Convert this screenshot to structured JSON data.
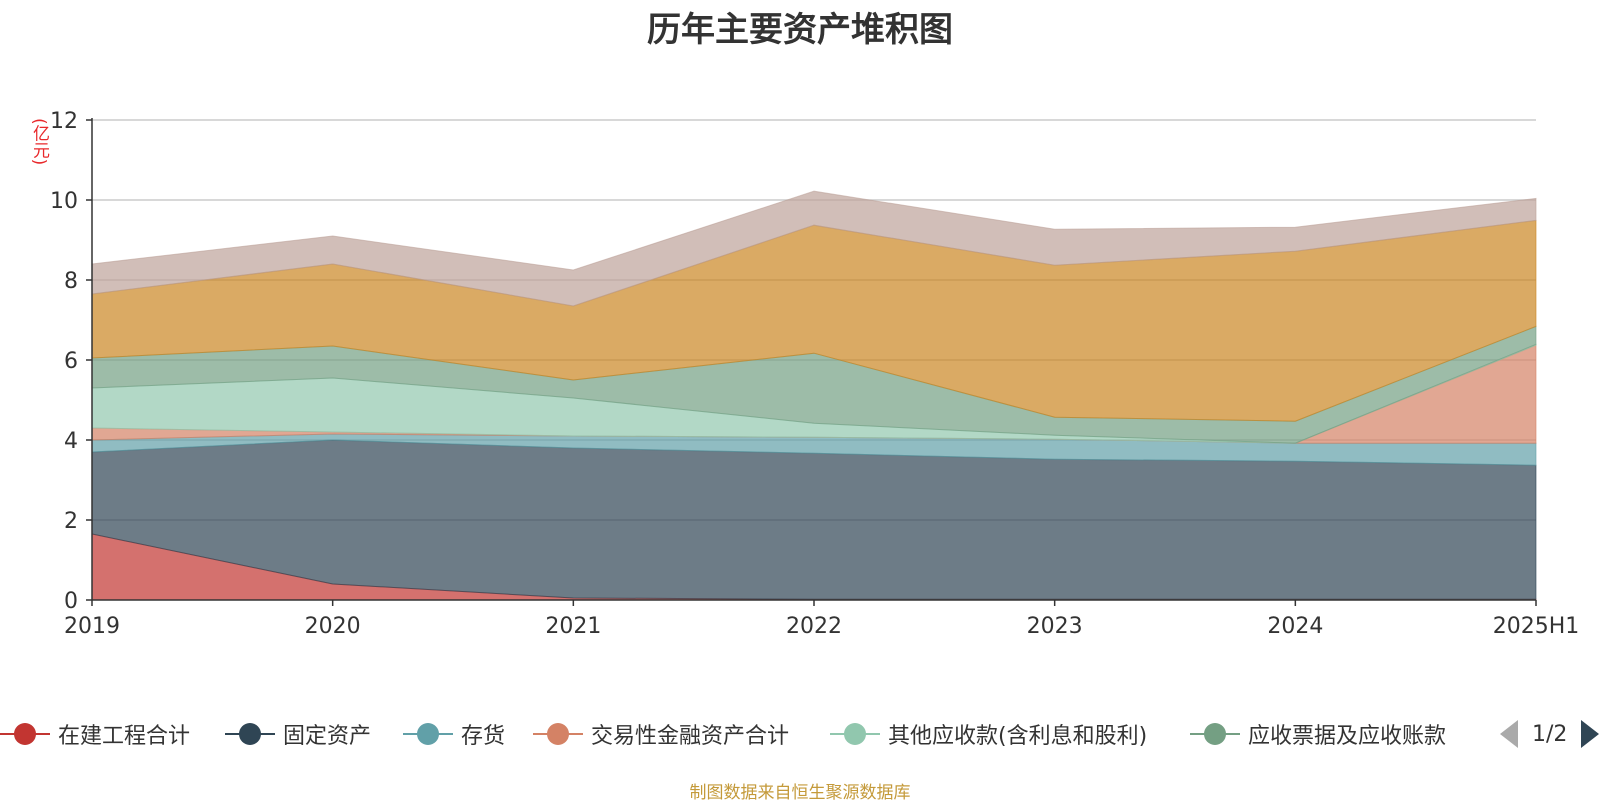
{
  "chart_data": {
    "type": "area",
    "stacked": true,
    "title": "历年主要资产堆积图",
    "unit_label": "(亿元)",
    "categories": [
      "2019",
      "2020",
      "2021",
      "2022",
      "2023",
      "2024",
      "2025H1"
    ],
    "ylim": [
      0,
      12
    ],
    "yticks": [
      0,
      2,
      4,
      6,
      8,
      10,
      12
    ],
    "grid": true,
    "legend_position": "bottom",
    "series": [
      {
        "name": "在建工程合计",
        "color": "#c23531",
        "values": [
          1.65,
          0.4,
          0.05,
          0.02,
          0.02,
          0.02,
          0.02
        ]
      },
      {
        "name": "固定资产",
        "color": "#2f4554",
        "values": [
          2.05,
          3.6,
          3.75,
          3.65,
          3.5,
          3.45,
          3.35
        ]
      },
      {
        "name": "存货",
        "color": "#61a0a8",
        "values": [
          0.3,
          0.15,
          0.3,
          0.4,
          0.5,
          0.45,
          0.55
        ]
      },
      {
        "name": "交易性金融资产合计",
        "color": "#d48265",
        "values": [
          0.3,
          0.05,
          0.0,
          0.0,
          0.0,
          0.0,
          2.45
        ]
      },
      {
        "name": "其他应收款(含利息和股利)",
        "color": "#91c7ae",
        "values": [
          1.0,
          1.35,
          0.95,
          0.35,
          0.1,
          0.0,
          0.02
        ]
      },
      {
        "name": "应收票据及应收账款",
        "color": "#749f83",
        "values": [
          0.75,
          0.8,
          0.45,
          1.75,
          0.45,
          0.55,
          0.45
        ]
      },
      {
        "name": "",
        "color": "#ca8622",
        "values": [
          1.6,
          2.05,
          1.85,
          3.2,
          3.8,
          4.25,
          2.65
        ]
      },
      {
        "name": "",
        "color": "#bda29a",
        "values": [
          0.75,
          0.7,
          0.9,
          0.85,
          0.9,
          0.6,
          0.55
        ]
      }
    ]
  },
  "legend": {
    "page_text": "1/2"
  },
  "source_note": "制图数据来自恒生聚源数据库"
}
